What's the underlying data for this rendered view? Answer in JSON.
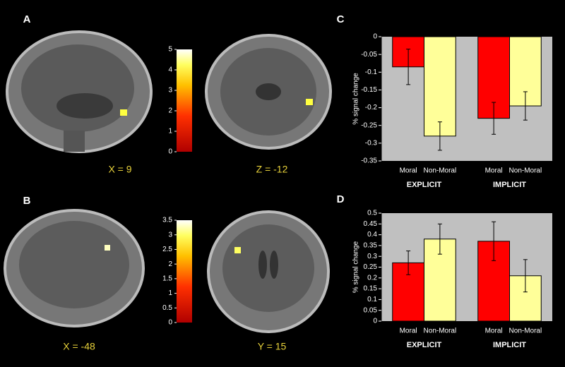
{
  "figure": {
    "panels": [
      {
        "label": "A",
        "coordinates": [
          "X = 9",
          "Z = -12"
        ]
      },
      {
        "label": "B",
        "coordinates": [
          "X = -48",
          "Y = 15"
        ]
      },
      {
        "label": "C"
      },
      {
        "label": "D"
      }
    ],
    "colorbars": [
      {
        "ylim": [
          0,
          5
        ],
        "yticks": [
          0,
          1,
          2,
          3,
          4,
          5
        ]
      },
      {
        "ylim": [
          0,
          3.5
        ],
        "yticks": [
          0,
          0.5,
          1,
          1.5,
          2,
          2.5,
          3,
          3.5
        ]
      }
    ]
  },
  "chart_data": [
    {
      "type": "bar",
      "y_label": "% signal change",
      "categories": [
        "EXPLICIT",
        "IMPLICIT"
      ],
      "series": [
        {
          "name": "Moral",
          "color": "#ff0000",
          "values": [
            -0.085,
            -0.23
          ],
          "errors": [
            0.05,
            0.045
          ]
        },
        {
          "name": "Non-Moral",
          "color": "#ffff99",
          "values": [
            -0.28,
            -0.195
          ],
          "errors": [
            0.04,
            0.04
          ]
        }
      ],
      "ylim": [
        -0.35,
        0
      ],
      "yticks": [
        0,
        -0.05,
        -0.1,
        -0.15,
        -0.2,
        -0.25,
        -0.3,
        -0.35
      ]
    },
    {
      "type": "bar",
      "y_label": "% signal change",
      "categories": [
        "EXPLICIT",
        "IMPLICIT"
      ],
      "series": [
        {
          "name": "Moral",
          "color": "#ff0000",
          "values": [
            0.27,
            0.37
          ],
          "errors": [
            0.055,
            0.09
          ]
        },
        {
          "name": "Non-Moral",
          "color": "#ffff99",
          "values": [
            0.38,
            0.21
          ],
          "errors": [
            0.07,
            0.075
          ]
        }
      ],
      "ylim": [
        0,
        0.5
      ],
      "yticks": [
        0,
        0.05,
        0.1,
        0.15,
        0.2,
        0.25,
        0.3,
        0.35,
        0.4,
        0.45,
        0.5
      ]
    }
  ]
}
